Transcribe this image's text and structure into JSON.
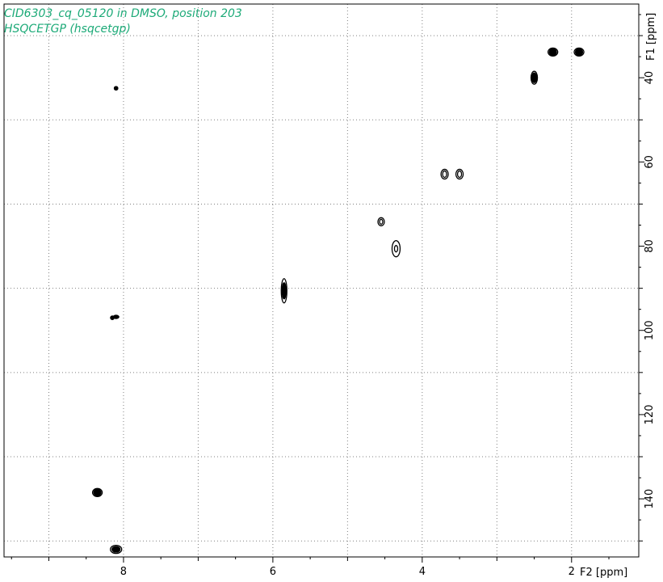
{
  "chart_data": {
    "type": "scatter",
    "title_lines": [
      "CID6303_cq_05120 in DMSO, position 203",
      "HSQCETGP (hsqcetgp)"
    ],
    "xlabel": "F2 [ppm]",
    "ylabel": "F1 [ppm]",
    "x_ticks": [
      "8",
      "6",
      "4",
      "2"
    ],
    "y_ticks": [
      "40",
      "60",
      "80",
      "100",
      "120",
      "140"
    ],
    "xlim": [
      9.6,
      1.1
    ],
    "ylim": [
      22.5,
      153.8
    ],
    "x_reversed": true,
    "grid": true,
    "colors": {
      "title": "#1daa78",
      "peaks": "#000000",
      "grid": "#808080"
    },
    "peaks": [
      {
        "x": 1.9,
        "y": 33.9,
        "size": "medium"
      },
      {
        "x": 2.25,
        "y": 33.9,
        "size": "medium"
      },
      {
        "x": 2.5,
        "y": 40.0,
        "size": "medium-tall"
      },
      {
        "x": 8.1,
        "y": 42.5,
        "size": "small"
      },
      {
        "x": 3.5,
        "y": 62.9,
        "size": "ring"
      },
      {
        "x": 3.7,
        "y": 62.9,
        "size": "ring"
      },
      {
        "x": 4.55,
        "y": 74.2,
        "size": "ring-small"
      },
      {
        "x": 4.35,
        "y": 80.6,
        "size": "ring-tall"
      },
      {
        "x": 5.85,
        "y": 90.6,
        "size": "tall"
      },
      {
        "x": 8.1,
        "y": 96.8,
        "size": "small-wide"
      },
      {
        "x": 8.15,
        "y": 97.0,
        "size": "small"
      },
      {
        "x": 8.35,
        "y": 138.5,
        "size": "medium"
      },
      {
        "x": 8.1,
        "y": 152.0,
        "size": "wide"
      }
    ]
  }
}
